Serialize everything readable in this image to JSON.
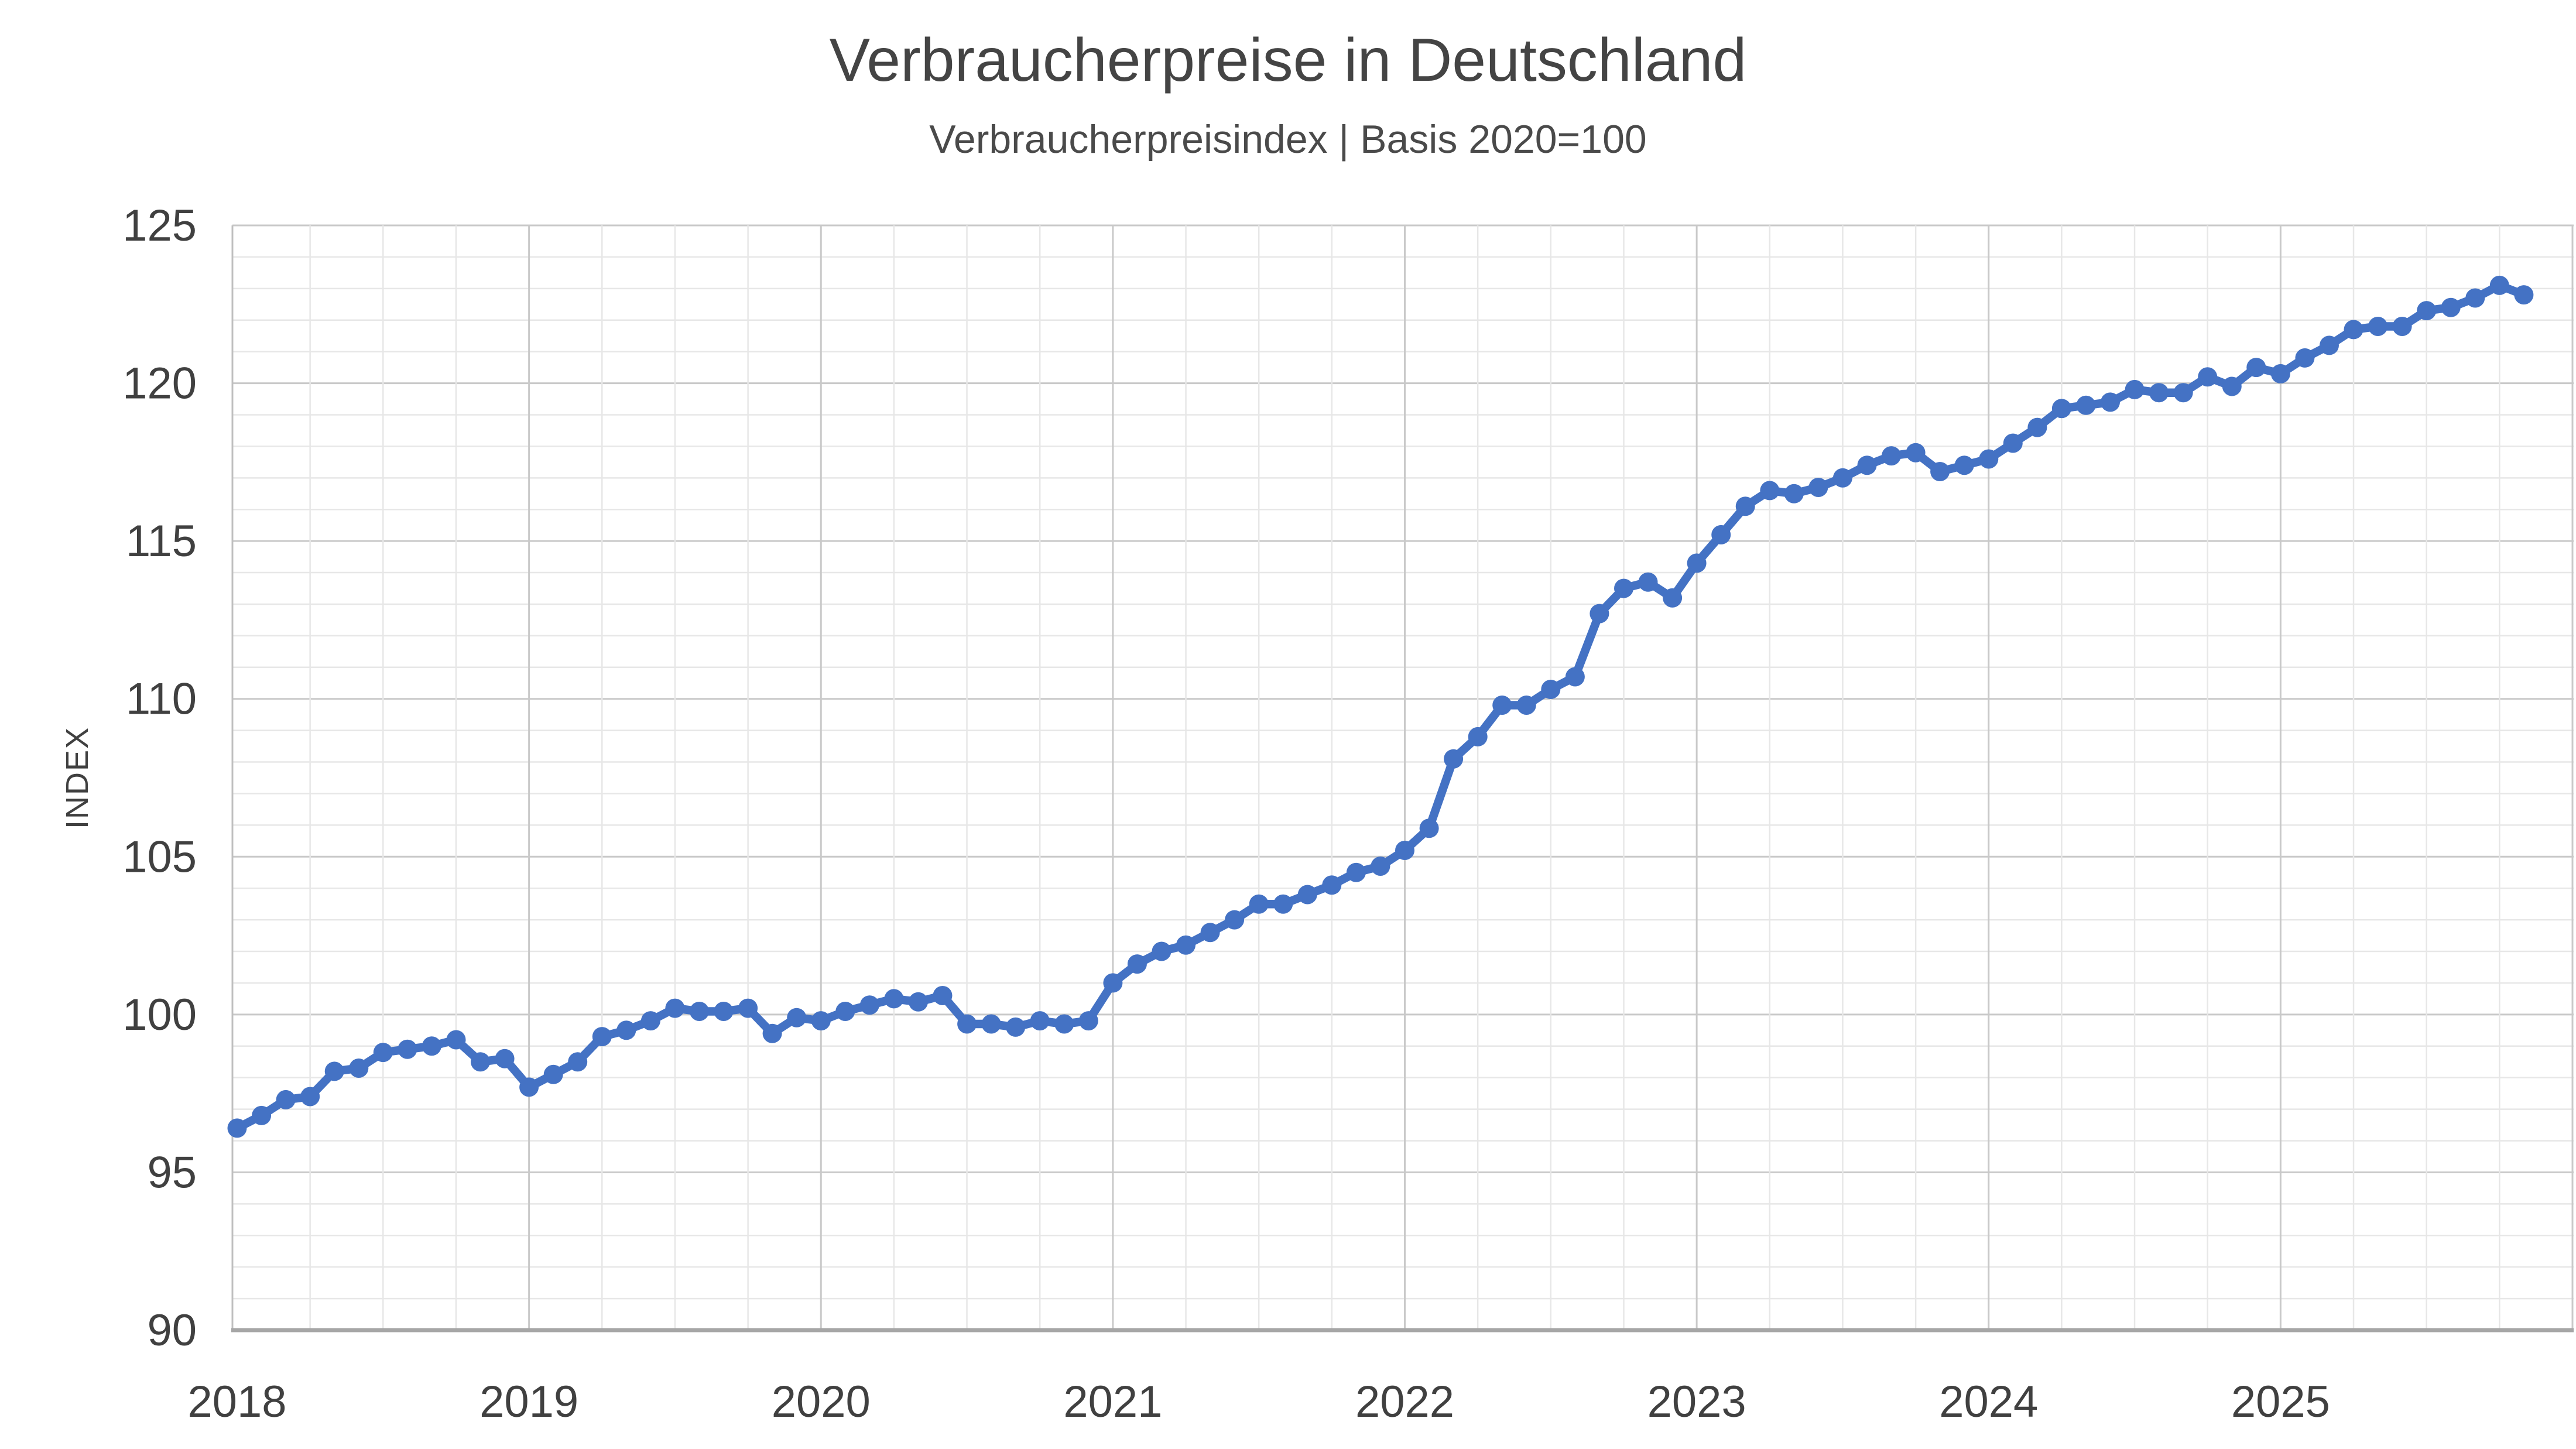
{
  "title": "Verbraucherpreise in Deutschland",
  "subtitle": "Verbraucherpreisindex | Basis 2020=100",
  "colors": {
    "line": "#4472C4",
    "grid_minor": "#E7E7E7",
    "grid_major": "#C9C9C9",
    "axis_left": "#BFBFBF",
    "axis_bottom": "#A6A6A6",
    "text": "#404040"
  },
  "chart_data": {
    "type": "line",
    "title": "Verbraucherpreise in Deutschland",
    "subtitle": "Verbraucherpreisindex | Basis 2020=100",
    "xlabel": "",
    "ylabel": "INDEX",
    "ylim": [
      90,
      125
    ],
    "y_ticks": [
      90,
      95,
      100,
      105,
      110,
      115,
      120,
      125
    ],
    "y_minor_step": 1,
    "x_minor_step_months": 3,
    "x_major_step_months": 12,
    "grid": "on",
    "legend": "none",
    "frequency": "monthly",
    "x_start": "2018-01",
    "x_end": "2025-11",
    "x_year_labels": [
      "2018",
      "2019",
      "2020",
      "2021",
      "2022",
      "2023",
      "2024",
      "2025"
    ],
    "series": [
      {
        "name": "Verbraucherpreisindex (2020=100)",
        "color": "#4472C4",
        "marker": "circle",
        "values": [
          96.4,
          96.8,
          97.3,
          97.4,
          98.2,
          98.3,
          98.8,
          98.9,
          99.0,
          99.2,
          98.5,
          98.6,
          97.7,
          98.1,
          98.5,
          99.3,
          99.5,
          99.8,
          100.2,
          100.1,
          100.1,
          100.2,
          99.4,
          99.9,
          99.8,
          100.1,
          100.3,
          100.5,
          100.4,
          100.6,
          99.7,
          99.7,
          99.6,
          99.8,
          99.7,
          99.8,
          101.0,
          101.6,
          102.0,
          102.2,
          102.6,
          103.0,
          103.5,
          103.5,
          103.8,
          104.1,
          104.5,
          104.7,
          105.2,
          105.9,
          108.1,
          108.8,
          109.8,
          109.8,
          110.3,
          110.7,
          112.7,
          113.5,
          113.7,
          113.2,
          114.3,
          115.2,
          116.1,
          116.6,
          116.5,
          116.7,
          117.0,
          117.4,
          117.7,
          117.8,
          117.2,
          117.4,
          117.6,
          118.1,
          118.6,
          119.2,
          119.3,
          119.4,
          119.8,
          119.7,
          119.7,
          120.2,
          119.9,
          120.5,
          120.3,
          120.8,
          121.2,
          121.7,
          121.8,
          121.8,
          122.3,
          122.4,
          122.7,
          123.1,
          122.8
        ]
      }
    ]
  }
}
